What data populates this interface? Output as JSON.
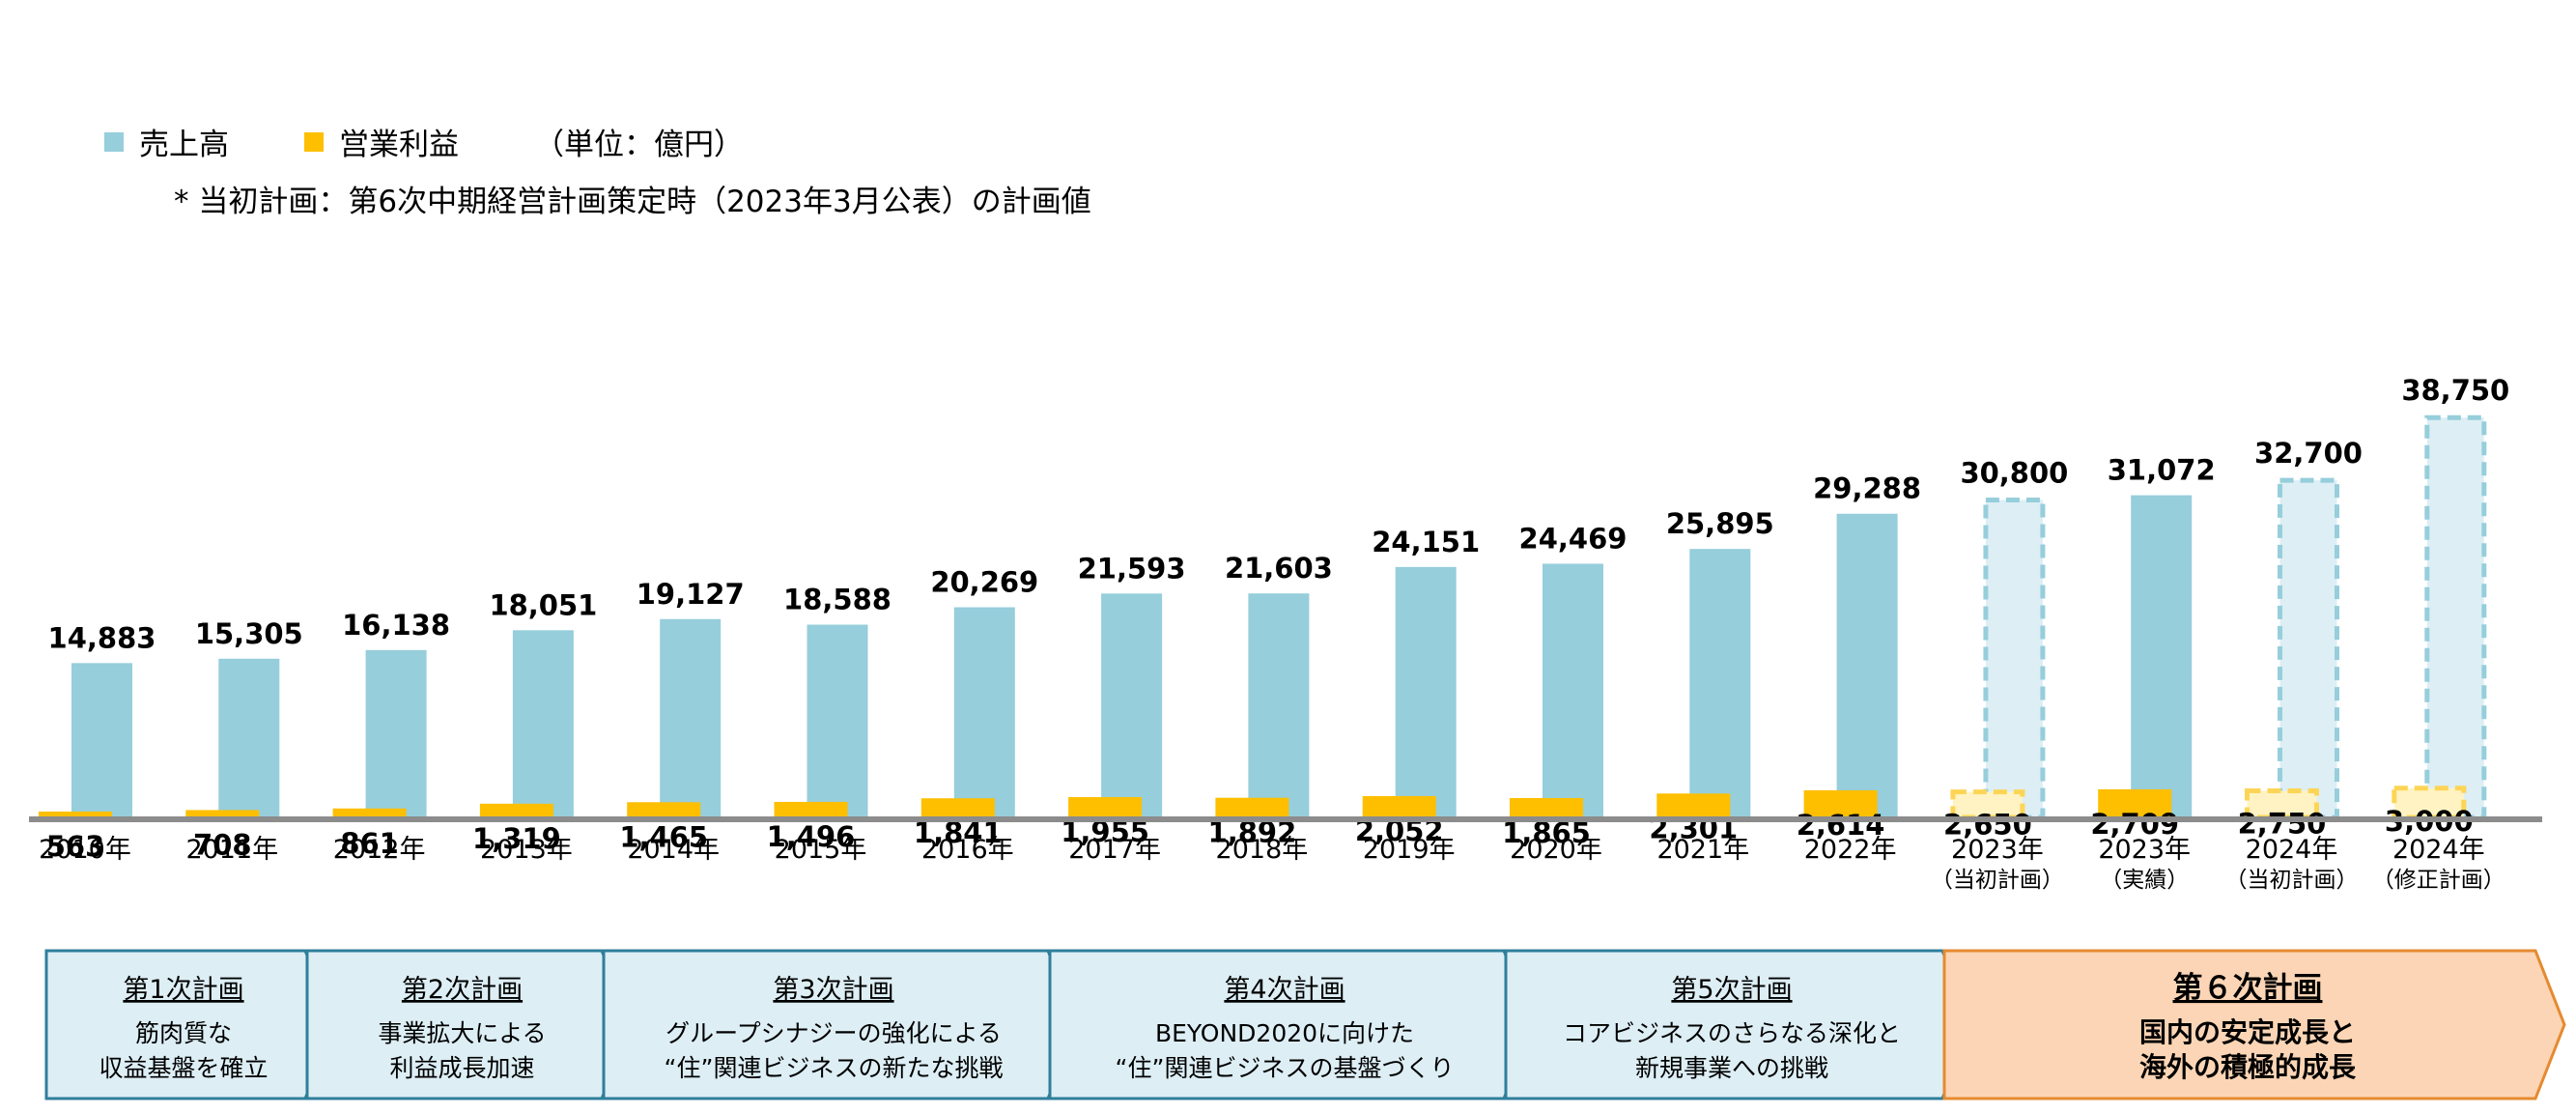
{
  "legend": {
    "sales_label": "売上高",
    "op_label": "営業利益",
    "unit": "（単位：億円）",
    "note": "* 当初計画：第6次中期経営計画策定時（2023年3月公表）の計画値"
  },
  "colors": {
    "sales": "#96cedb",
    "op": "#fdbf00",
    "plan_sales_fill": "#ddeef5",
    "plan_sales_stroke": "#96cedb",
    "plan_op_fill": "#fff3c4",
    "plan_op_stroke": "#fdd556",
    "axis": "#8c8c8c",
    "phase_fill": "#ddeef5",
    "phase_stroke": "#2f7f9b",
    "phase6_fill": "#fbd5b5",
    "phase6_stroke": "#e58a30"
  },
  "chart_data": {
    "type": "bar",
    "categories": [
      [
        "2010年"
      ],
      [
        "2011年"
      ],
      [
        "2012年"
      ],
      [
        "2013年"
      ],
      [
        "2014年"
      ],
      [
        "2015年"
      ],
      [
        "2016年"
      ],
      [
        "2017年"
      ],
      [
        "2018年"
      ],
      [
        "2019年"
      ],
      [
        "2020年"
      ],
      [
        "2021年"
      ],
      [
        "2022年"
      ],
      [
        "2023年",
        "（当初計画）"
      ],
      [
        "2023年",
        "（実績）"
      ],
      [
        "2024年",
        "（当初計画）"
      ],
      [
        "2024年",
        "（修正計画）"
      ]
    ],
    "series": [
      {
        "name": "売上高",
        "values": [
          14883,
          15305,
          16138,
          18051,
          19127,
          18588,
          20269,
          21593,
          21603,
          24151,
          24469,
          25895,
          29288,
          30800,
          31072,
          32700,
          38750
        ],
        "labels": [
          "14,883",
          "15,305",
          "16,138",
          "18,051",
          "19,127",
          "18,588",
          "20,269",
          "21,593",
          "21,603",
          "24,151",
          "24,469",
          "25,895",
          "29,288",
          "30,800",
          "31,072",
          "32,700",
          "38,750"
        ],
        "planned": [
          false,
          false,
          false,
          false,
          false,
          false,
          false,
          false,
          false,
          false,
          false,
          false,
          false,
          true,
          false,
          true,
          true
        ]
      },
      {
        "name": "営業利益",
        "values": [
          563,
          708,
          861,
          1319,
          1465,
          1496,
          1841,
          1955,
          1892,
          2052,
          1865,
          2301,
          2614,
          2650,
          2709,
          2750,
          3000
        ],
        "labels": [
          "563",
          "708",
          "861",
          "1,319",
          "1,465",
          "1,496",
          "1,841",
          "1,955",
          "1,892",
          "2,052",
          "1,865",
          "2,301",
          "2,614",
          "2,650",
          "2,709",
          "2,750",
          "3,000"
        ],
        "planned": [
          false,
          false,
          false,
          false,
          false,
          false,
          false,
          false,
          false,
          false,
          false,
          false,
          false,
          true,
          false,
          true,
          true
        ]
      }
    ]
  },
  "phases": [
    {
      "title": "第1次計画",
      "lines": [
        "筋肉質な",
        "収益基盤を確立"
      ]
    },
    {
      "title": "第2次計画",
      "lines": [
        "事業拡大による",
        "利益成長加速"
      ]
    },
    {
      "title": "第3次計画",
      "lines": [
        "グループシナジーの強化による",
        "“住”関連ビジネスの新たな挑戦"
      ]
    },
    {
      "title": "第4次計画",
      "lines": [
        "BEYOND2020に向けた",
        "“住”関連ビジネスの基盤づくり"
      ]
    },
    {
      "title": "第5次計画",
      "lines": [
        "コアビジネスのさらなる深化と",
        "新規事業への挑戦"
      ]
    },
    {
      "title": "第６次計画",
      "lines": [
        "国内の安定成長と",
        "海外の積極的成長"
      ],
      "highlight": true
    }
  ]
}
